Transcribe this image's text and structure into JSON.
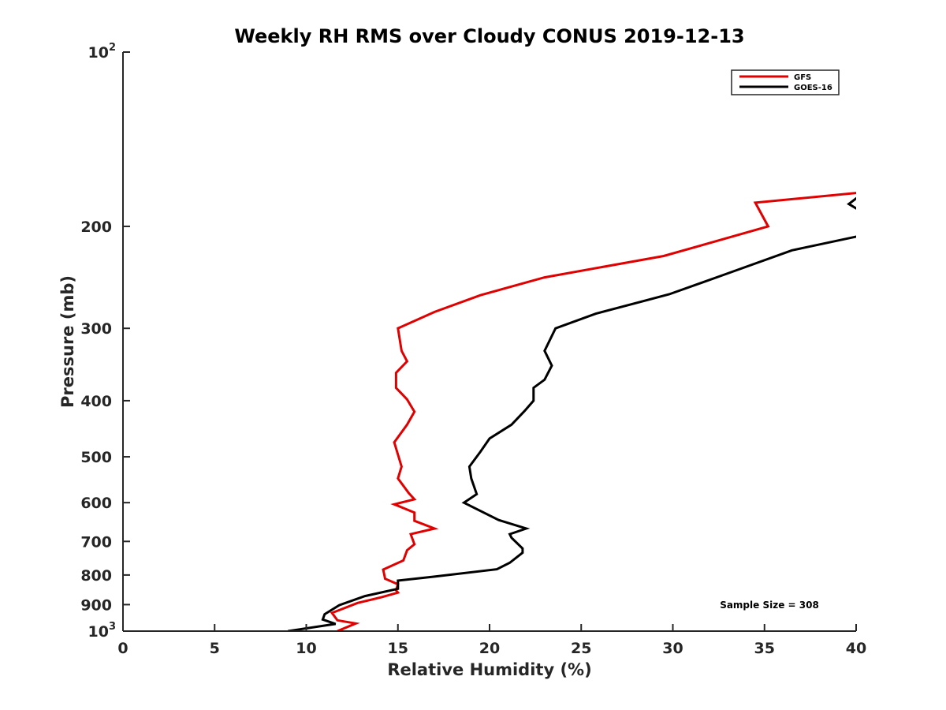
{
  "chart_data": {
    "type": "line",
    "title": "Weekly RH RMS over Cloudy CONUS 2019-12-13",
    "xlabel": "Relative Humidity (%)",
    "ylabel": "Pressure (mb)",
    "xlim": [
      0,
      40
    ],
    "ylim": [
      100,
      1000
    ],
    "y_scale": "log",
    "y_reversed": true,
    "grid": false,
    "legend_position": "top-right",
    "x_ticks": [
      "0",
      "5",
      "10",
      "15",
      "20",
      "25",
      "30",
      "35",
      "40"
    ],
    "y_ticks": [
      {
        "value": 100,
        "base": "10",
        "exp": "2"
      },
      {
        "value": 200,
        "base": "200",
        "exp": ""
      },
      {
        "value": 300,
        "base": "300",
        "exp": ""
      },
      {
        "value": 400,
        "base": "400",
        "exp": ""
      },
      {
        "value": 500,
        "base": "500",
        "exp": ""
      },
      {
        "value": 600,
        "base": "600",
        "exp": ""
      },
      {
        "value": 700,
        "base": "700",
        "exp": ""
      },
      {
        "value": 800,
        "base": "800",
        "exp": ""
      },
      {
        "value": 900,
        "base": "900",
        "exp": ""
      },
      {
        "value": 1000,
        "base": "10",
        "exp": "3"
      }
    ],
    "series": [
      {
        "name": "GFS",
        "color": "#e00000",
        "points": [
          [
            40.1,
            175
          ],
          [
            34.5,
            182
          ],
          [
            35.2,
            200
          ],
          [
            29.5,
            225
          ],
          [
            23.0,
            245
          ],
          [
            19.5,
            263
          ],
          [
            17.0,
            281
          ],
          [
            15.0,
            300
          ],
          [
            15.2,
            328
          ],
          [
            15.5,
            342
          ],
          [
            14.9,
            358
          ],
          [
            14.9,
            380
          ],
          [
            15.5,
            398
          ],
          [
            15.9,
            418
          ],
          [
            15.5,
            440
          ],
          [
            14.8,
            472
          ],
          [
            15.2,
            520
          ],
          [
            15.0,
            545
          ],
          [
            15.6,
            578
          ],
          [
            15.9,
            592
          ],
          [
            14.8,
            604
          ],
          [
            15.9,
            624
          ],
          [
            15.9,
            645
          ],
          [
            17.0,
            665
          ],
          [
            15.7,
            680
          ],
          [
            15.9,
            708
          ],
          [
            15.5,
            725
          ],
          [
            15.3,
            755
          ],
          [
            14.2,
            783
          ],
          [
            14.3,
            812
          ],
          [
            15.0,
            830
          ],
          [
            14.9,
            850
          ],
          [
            15.0,
            858
          ],
          [
            14.1,
            874
          ],
          [
            12.8,
            894
          ],
          [
            11.8,
            920
          ],
          [
            11.4,
            930
          ],
          [
            11.7,
            958
          ],
          [
            12.7,
            970
          ],
          [
            11.7,
            1000
          ]
        ]
      },
      {
        "name": "GOES-16",
        "color": "#000000",
        "points": [
          [
            40.1,
            178
          ],
          [
            39.6,
            183
          ],
          [
            40.1,
            187
          ],
          [
            40.1,
            208
          ],
          [
            36.5,
            220
          ],
          [
            32.7,
            243
          ],
          [
            29.8,
            262
          ],
          [
            25.8,
            283
          ],
          [
            23.6,
            300
          ],
          [
            23.0,
            328
          ],
          [
            23.4,
            348
          ],
          [
            23.0,
            368
          ],
          [
            22.4,
            380
          ],
          [
            22.4,
            400
          ],
          [
            21.9,
            417
          ],
          [
            21.2,
            440
          ],
          [
            20.0,
            465
          ],
          [
            19.5,
            490
          ],
          [
            18.9,
            520
          ],
          [
            19.0,
            545
          ],
          [
            19.3,
            580
          ],
          [
            18.6,
            600
          ],
          [
            20.5,
            643
          ],
          [
            22.0,
            665
          ],
          [
            21.1,
            680
          ],
          [
            21.2,
            690
          ],
          [
            21.8,
            720
          ],
          [
            21.8,
            732
          ],
          [
            21.1,
            762
          ],
          [
            20.4,
            782
          ],
          [
            17.0,
            805
          ],
          [
            15.0,
            818
          ],
          [
            15.0,
            845
          ],
          [
            13.2,
            870
          ],
          [
            11.8,
            902
          ],
          [
            11.0,
            935
          ],
          [
            10.9,
            955
          ],
          [
            11.6,
            972
          ],
          [
            9.0,
            1000
          ]
        ]
      }
    ],
    "annotation": "Sample Size = 308"
  }
}
